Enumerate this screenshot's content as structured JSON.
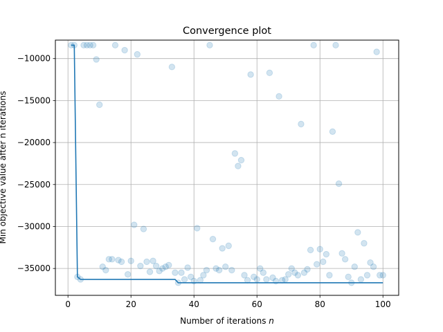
{
  "chart_data": {
    "type": "scatter",
    "title": "Convergence plot",
    "xlabel": "Number of iterations ",
    "xlabel_italic": "n",
    "ylabel": "Min objective value after n iterations",
    "xlim": [
      -4,
      105
    ],
    "ylim": [
      -38200,
      -7800
    ],
    "xticks": [
      0,
      20,
      40,
      60,
      80,
      100
    ],
    "yticks": [
      -35000,
      -30000,
      -25000,
      -20000,
      -15000,
      -10000
    ],
    "grid": true,
    "colors": {
      "accent": "#1f77b4",
      "grid": "#b0b0b0"
    },
    "series": [
      {
        "mode": "markers",
        "x": [
          1,
          2,
          3,
          4,
          5,
          6,
          7,
          8,
          9,
          10,
          11,
          12,
          13,
          14,
          15,
          16,
          17,
          18,
          19,
          20,
          21,
          22,
          23,
          24,
          25,
          26,
          27,
          28,
          29,
          30,
          31,
          32,
          33,
          34,
          35,
          36,
          37,
          38,
          39,
          40,
          41,
          42,
          43,
          44,
          45,
          46,
          47,
          48,
          49,
          50,
          51,
          52,
          53,
          54,
          55,
          56,
          57,
          58,
          59,
          60,
          61,
          62,
          63,
          64,
          65,
          66,
          67,
          68,
          69,
          70,
          71,
          72,
          73,
          74,
          75,
          76,
          77,
          78,
          79,
          80,
          81,
          82,
          83,
          84,
          85,
          86,
          87,
          88,
          89,
          90,
          91,
          92,
          93,
          94,
          95,
          96,
          97,
          98,
          99,
          100
        ],
        "y": [
          -8400,
          -8400,
          -36000,
          -36300,
          -8400,
          -8400,
          -8400,
          -8400,
          -10100,
          -15500,
          -34800,
          -35200,
          -33900,
          -33900,
          -8400,
          -34000,
          -34200,
          -9000,
          -35700,
          -34100,
          -29800,
          -9500,
          -34700,
          -30300,
          -34200,
          -35400,
          -34100,
          -34700,
          -35300,
          -35000,
          -34800,
          -34600,
          -11000,
          -35500,
          -36700,
          -35500,
          -36300,
          -34900,
          -36000,
          -36500,
          -30200,
          -36400,
          -35800,
          -35200,
          -8400,
          -31500,
          -35000,
          -35200,
          -32600,
          -34800,
          -32300,
          -35200,
          -21300,
          -22800,
          -22100,
          -35800,
          -36400,
          -11900,
          -36000,
          -36300,
          -35000,
          -35500,
          -36300,
          -11700,
          -36100,
          -36500,
          -14500,
          -36400,
          -36300,
          -35700,
          -35000,
          -35500,
          -35800,
          -17800,
          -35500,
          -35100,
          -32800,
          -8400,
          -34500,
          -32700,
          -34200,
          -33300,
          -35800,
          -18700,
          -8400,
          -24900,
          -33200,
          -33900,
          -36000,
          -36700,
          -34800,
          -30700,
          -36300,
          -32000,
          -35800,
          -34300,
          -34800,
          -9200,
          -35800,
          -35800
        ]
      },
      {
        "mode": "line",
        "x": [
          1,
          2,
          3,
          4,
          5,
          34,
          35,
          100
        ],
        "y": [
          -8400,
          -8400,
          -36000,
          -36300,
          -36300,
          -36300,
          -36700,
          -36700
        ]
      }
    ]
  }
}
